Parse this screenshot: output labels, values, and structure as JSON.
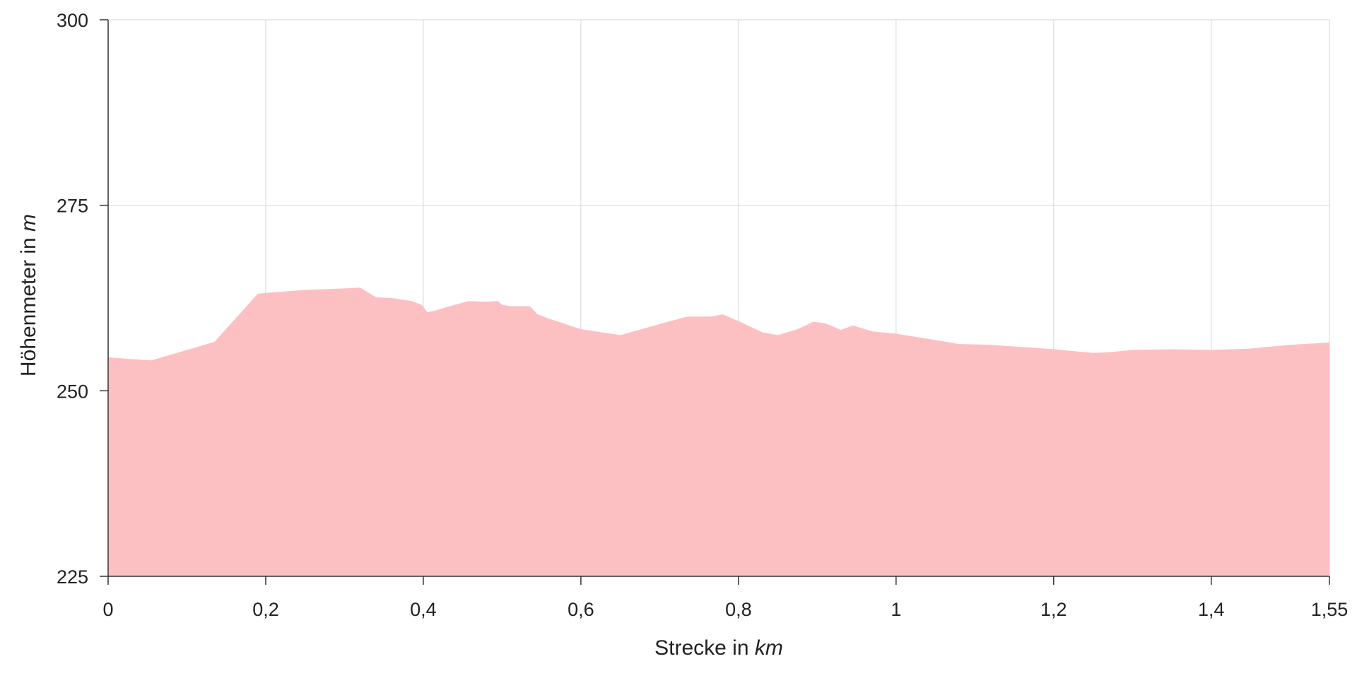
{
  "colors": {
    "area": "#fdc0c2",
    "grid": "#dcdcdc",
    "axis": "#333333",
    "text": "#222222"
  },
  "chart_data": {
    "type": "area",
    "xlabel": "Strecke in",
    "xlabel_unit": "km",
    "ylabel": "Höhenmeter in",
    "ylabel_unit": "m",
    "xlim": [
      0,
      1.55
    ],
    "ylim": [
      225,
      300
    ],
    "x_ticks": [
      0,
      0.2,
      0.4,
      0.6,
      0.8,
      1,
      1.2,
      1.4,
      1.55
    ],
    "x_tick_labels": [
      "0",
      "0,2",
      "0,4",
      "0,6",
      "0,8",
      "1",
      "1,2",
      "1,4",
      "1,55"
    ],
    "y_ticks": [
      225,
      250,
      275,
      300
    ],
    "y_tick_labels": [
      "225",
      "250",
      "275",
      "300"
    ],
    "grid": true,
    "series": [
      {
        "x": [
          0,
          0.055,
          0.135,
          0.19,
          0.25,
          0.3,
          0.32,
          0.34,
          0.36,
          0.385,
          0.398,
          0.405,
          0.415,
          0.43,
          0.458,
          0.48,
          0.495,
          0.5,
          0.51,
          0.535,
          0.545,
          0.56,
          0.6,
          0.65,
          0.7,
          0.735,
          0.765,
          0.78,
          0.8,
          0.83,
          0.85,
          0.875,
          0.895,
          0.91,
          0.93,
          0.945,
          0.97,
          1,
          1.04,
          1.08,
          1.12,
          1.16,
          1.2,
          1.23,
          1.25,
          1.27,
          1.3,
          1.35,
          1.4,
          1.45,
          1.5,
          1.55
        ],
        "y": [
          254.5,
          254.1,
          256.6,
          263.1,
          263.6,
          263.8,
          263.9,
          262.6,
          262.5,
          262.1,
          261.6,
          260.6,
          260.8,
          261.3,
          262.1,
          262.0,
          262.1,
          261.6,
          261.4,
          261.4,
          260.3,
          259.7,
          258.3,
          257.5,
          259.0,
          260.0,
          260.0,
          260.3,
          259.4,
          257.9,
          257.5,
          258.3,
          259.3,
          259.1,
          258.2,
          258.8,
          258.0,
          257.7,
          257.0,
          256.3,
          256.2,
          255.9,
          255.6,
          255.3,
          255.1,
          255.2,
          255.5,
          255.6,
          255.5,
          255.7,
          256.2,
          256.5
        ]
      }
    ]
  }
}
